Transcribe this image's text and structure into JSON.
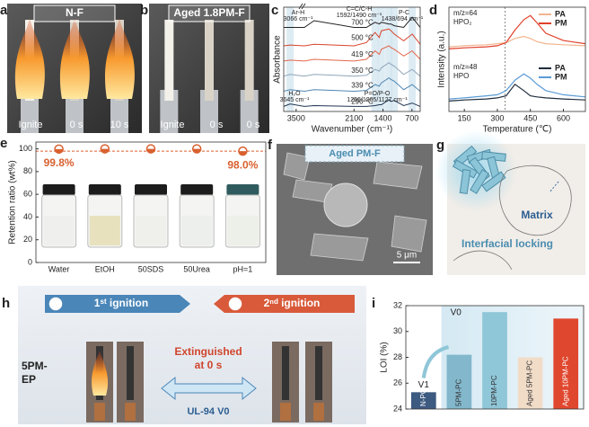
{
  "panels": {
    "a": {
      "letter": "a",
      "title": "N-F",
      "labels": [
        "Ignite",
        "0 s",
        "10 s"
      ]
    },
    "b": {
      "letter": "b",
      "title": "Aged 1.8PM-F",
      "labels": [
        "Ignite",
        "0 s",
        "0 s"
      ]
    },
    "c": {
      "letter": "c"
    },
    "d": {
      "letter": "d"
    },
    "e": {
      "letter": "e"
    },
    "f": {
      "letter": "f",
      "title": "Aged PM-F",
      "scale": "5 μm"
    },
    "g": {
      "letter": "g",
      "labels": [
        "Matrix",
        "Interfacial locking"
      ]
    },
    "h": {
      "letter": "h",
      "first": "1ˢᵗ ignition",
      "second": "2ⁿᵈ ignition",
      "sample": [
        "5PM-",
        "EP"
      ],
      "result": [
        "Extinguished",
        "at 0 s"
      ],
      "rating": "UL-94 V0"
    },
    "i": {
      "letter": "i"
    }
  },
  "chart_data": [
    {
      "type": "line",
      "x_label": "Wavenumber (cm⁻¹)",
      "y_label": "Absorbance",
      "xlim": [
        3800,
        500
      ],
      "xticks": [
        3500,
        2100,
        1400,
        700
      ],
      "ylim": [
        0,
        6.2
      ],
      "bands": [
        3645,
        1592,
        1438,
        1256,
        1127,
        694
      ],
      "annotations": [
        "Ar-H",
        "3066 cm⁻¹",
        "C=C/C-H",
        "1592/1490 cm⁻¹",
        "P-C",
        "1438/694 cm⁻¹",
        "H₂O",
        "3645 cm⁻¹",
        "P=O/P-O",
        "1256/1205/1127 cm⁻¹"
      ],
      "x": [
        3800,
        3645,
        3300,
        3066,
        2100,
        1800,
        1592,
        1490,
        1438,
        1256,
        1205,
        1127,
        900,
        694,
        500
      ],
      "series": [
        {
          "name": "700 °C",
          "color": "#222222",
          "values": [
            5.0,
            5.0,
            5.0,
            5.4,
            5.0,
            5.0,
            5.3,
            5.2,
            5.3,
            5.2,
            5.2,
            5.1,
            5.0,
            5.6,
            5.0
          ]
        },
        {
          "name": "500 °C",
          "color": "#d8432a",
          "values": [
            3.9,
            3.95,
            3.9,
            4.0,
            3.9,
            4.1,
            4.7,
            4.4,
            4.8,
            4.9,
            4.8,
            4.6,
            4.2,
            4.6,
            4.0
          ]
        },
        {
          "name": "419 °C",
          "color": "#e3684d",
          "values": [
            3.0,
            3.05,
            3.0,
            3.1,
            3.0,
            3.1,
            3.6,
            3.4,
            3.7,
            3.9,
            3.8,
            3.7,
            3.3,
            3.6,
            3.1
          ]
        },
        {
          "name": "350 °C",
          "color": "#8fa6b8",
          "values": [
            2.1,
            2.2,
            2.1,
            2.2,
            2.1,
            2.15,
            2.5,
            2.4,
            2.6,
            2.9,
            2.8,
            2.7,
            2.2,
            2.5,
            2.1
          ]
        },
        {
          "name": "339 °C",
          "color": "#4f86b3",
          "values": [
            1.2,
            1.3,
            1.2,
            1.3,
            1.2,
            1.25,
            1.6,
            1.5,
            1.7,
            2.0,
            1.9,
            1.8,
            1.3,
            1.6,
            1.2
          ]
        },
        {
          "name": "290 °C",
          "color": "#1f3550",
          "values": [
            0.3,
            0.45,
            0.3,
            0.35,
            0.3,
            0.3,
            0.35,
            0.4,
            0.4,
            0.7,
            0.6,
            0.65,
            0.35,
            0.5,
            0.3
          ]
        }
      ]
    },
    {
      "type": "line",
      "x_label": "Temperature (℃)",
      "y_label": "Intensity (a.u.)",
      "xlim": [
        80,
        700
      ],
      "xticks": [
        150,
        300,
        450,
        600
      ],
      "ylim": [
        0,
        10
      ],
      "marker_x": 335,
      "groups": [
        {
          "label": "m/z=64",
          "species": "HPO₂"
        },
        {
          "label": "m/z=48",
          "species": "HPO"
        }
      ],
      "x": [
        80,
        150,
        250,
        300,
        340,
        380,
        420,
        450,
        480,
        520,
        600,
        700
      ],
      "series": [
        {
          "name": "PA",
          "group": 0,
          "color": "#f2b58f",
          "values": [
            6.2,
            6.3,
            6.4,
            6.5,
            6.6,
            7.0,
            7.2,
            7.0,
            6.7,
            6.5,
            6.4,
            6.3
          ]
        },
        {
          "name": "PM",
          "group": 0,
          "color": "#e0402a",
          "values": [
            6.0,
            6.1,
            6.2,
            6.3,
            6.6,
            7.8,
            8.8,
            9.2,
            8.5,
            7.5,
            6.8,
            6.5
          ]
        },
        {
          "name": "PA",
          "group": 1,
          "color": "#1f2d3d",
          "values": [
            1.0,
            1.1,
            1.2,
            1.3,
            1.5,
            2.6,
            2.0,
            1.5,
            1.4,
            1.3,
            1.2,
            1.1
          ]
        },
        {
          "name": "PM",
          "group": 1,
          "color": "#5b9bd5",
          "values": [
            1.2,
            1.3,
            1.5,
            1.6,
            2.0,
            3.0,
            3.6,
            3.2,
            2.6,
            2.0,
            1.6,
            1.4
          ]
        }
      ]
    },
    {
      "type": "dot",
      "y_label": "Retention ratio (wt%)",
      "color": "#d9602f",
      "categories": [
        "Water",
        "EtOH",
        "50SDS",
        "50Urea",
        "pH=1"
      ],
      "values": [
        99.8,
        100,
        100,
        100,
        98.0
      ],
      "value_labels": [
        "99.8%",
        null,
        null,
        null,
        "98.0%"
      ],
      "ref_line": 98,
      "ylim": [
        0,
        106
      ],
      "yticks": [
        0,
        20,
        40,
        60,
        80,
        100
      ]
    },
    {
      "type": "bar",
      "y_label": "LOI (%)",
      "categories": [
        "N-PC",
        "5PM-PC",
        "10PM-PC",
        "Aged 5PM-PC",
        "Aged 10PM-PC"
      ],
      "values": [
        25.3,
        28.2,
        31.5,
        28.0,
        31.0
      ],
      "colors": [
        "#3d5a80",
        "#82b7cc",
        "#8fc6d8",
        "#f1dcc8",
        "#e0472f"
      ],
      "ratings": [
        "V1",
        "V0"
      ],
      "ylim": [
        24,
        32
      ],
      "yticks": [
        24,
        26,
        28,
        30,
        32
      ]
    }
  ]
}
